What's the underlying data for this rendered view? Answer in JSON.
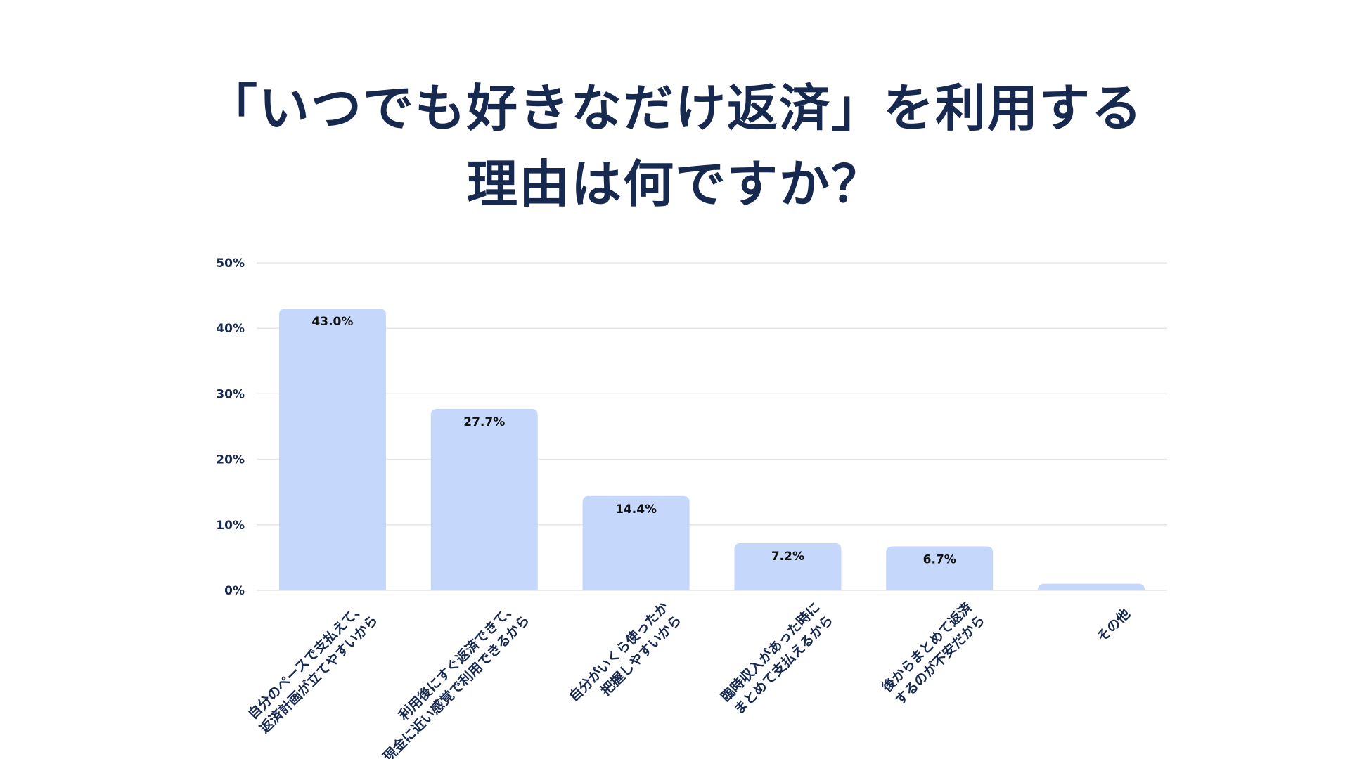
{
  "chart_data": {
    "type": "bar",
    "title_lines": [
      "「いつでも好きなだけ返済」を利用する",
      "理由は何ですか？"
    ],
    "categories": [
      [
        "自分のペースで支払えて、",
        "返済計画が立てやすいから"
      ],
      [
        "利用後にすぐ返済できて、",
        "現金に近い感覚で利用できるから"
      ],
      [
        "自分がいくら使ったか",
        "把握しやすいから"
      ],
      [
        "臨時収入があった時に",
        "まとめて支払えるから"
      ],
      [
        "後からまとめて返済",
        "するのが不安だから"
      ],
      [
        "その他"
      ]
    ],
    "values": [
      43.0,
      27.7,
      14.4,
      7.2,
      6.7,
      1.0
    ],
    "data_labels": [
      "43.0%",
      "27.7%",
      "14.4%",
      "7.2%",
      "6.7%",
      ""
    ],
    "ylim": [
      0,
      50
    ],
    "yticks": [
      0,
      10,
      20,
      30,
      40,
      50
    ],
    "ytick_labels": [
      "0%",
      "10%",
      "20%",
      "30%",
      "40%",
      "50%"
    ],
    "grid": true,
    "colors": {
      "bar": "#c5d7fb",
      "grid": "#e6e6e6",
      "text": "#17294f"
    }
  }
}
